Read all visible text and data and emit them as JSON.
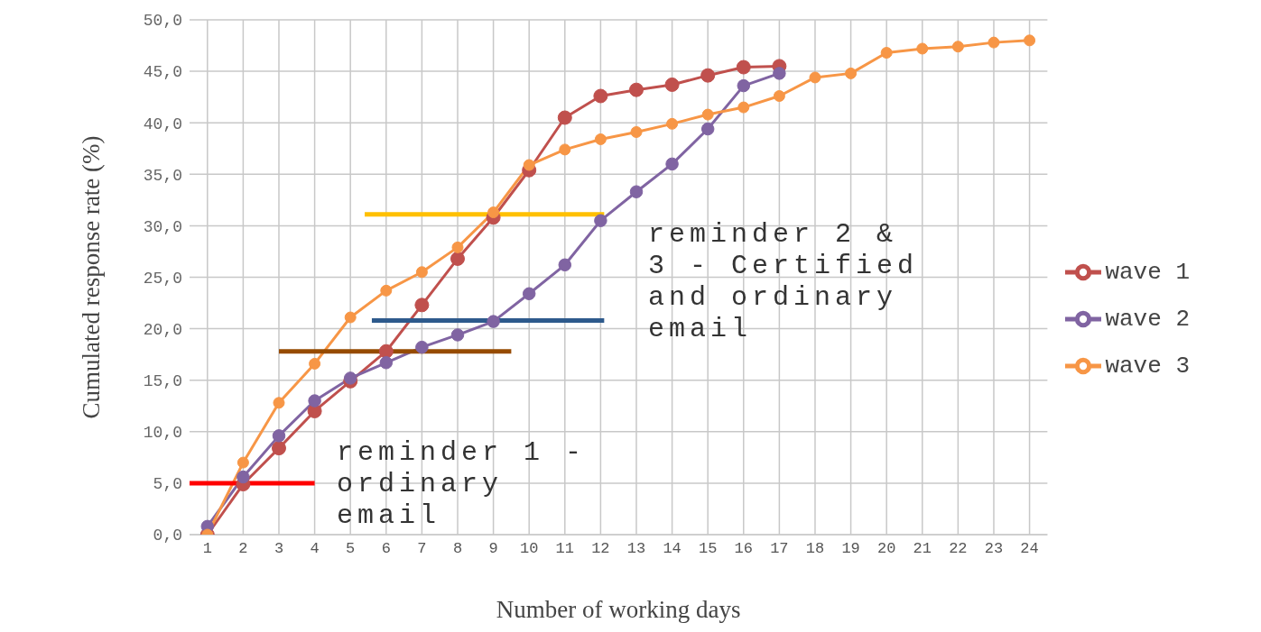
{
  "chart_data": {
    "type": "line",
    "xlabel": "Number of working days",
    "ylabel": "Cumulated response rate (%)",
    "xlim": [
      0.5,
      24.5
    ],
    "xticks": [
      1,
      2,
      3,
      4,
      5,
      6,
      7,
      8,
      9,
      10,
      11,
      12,
      13,
      14,
      15,
      16,
      17,
      18,
      19,
      20,
      21,
      22,
      23,
      24
    ],
    "ylim": [
      0,
      50
    ],
    "yticks": [
      {
        "value": 0,
        "label": "0,0"
      },
      {
        "value": 5,
        "label": "5,0"
      },
      {
        "value": 10,
        "label": "10,0"
      },
      {
        "value": 15,
        "label": "15,0"
      },
      {
        "value": 20,
        "label": "20,0"
      },
      {
        "value": 25,
        "label": "25,0"
      },
      {
        "value": 30,
        "label": "30,0"
      },
      {
        "value": 35,
        "label": "35,0"
      },
      {
        "value": 40,
        "label": "40,0"
      },
      {
        "value": 45,
        "label": "45,0"
      },
      {
        "value": 50,
        "label": "50,0"
      }
    ],
    "grid": true,
    "legend": "right",
    "marker": "circle",
    "series": [
      {
        "name": "wave 1",
        "color": "#c0504d",
        "x": [
          1,
          2,
          3,
          4,
          5,
          6,
          7,
          8,
          9,
          10,
          11,
          12,
          13,
          14,
          15,
          16,
          17
        ],
        "values": [
          0,
          4.9,
          8.4,
          12.0,
          14.9,
          17.8,
          22.3,
          26.8,
          30.8,
          35.4,
          40.5,
          42.6,
          43.2,
          43.7,
          44.6,
          45.4,
          45.5
        ]
      },
      {
        "name": "wave 2",
        "color": "#8064a2",
        "x": [
          1,
          2,
          3,
          4,
          5,
          6,
          7,
          8,
          9,
          10,
          11,
          12,
          13,
          14,
          15,
          16,
          17
        ],
        "values": [
          0.8,
          5.6,
          9.6,
          13.0,
          15.2,
          16.7,
          18.2,
          19.4,
          20.7,
          23.4,
          26.2,
          30.5,
          33.3,
          36.0,
          39.4,
          43.6,
          44.8
        ]
      },
      {
        "name": "wave 3",
        "color": "#f79646",
        "x": [
          1,
          2,
          3,
          4,
          5,
          6,
          7,
          8,
          9,
          10,
          11,
          12,
          13,
          14,
          15,
          16,
          17,
          18,
          19,
          20,
          21,
          22,
          23,
          24
        ],
        "values": [
          0,
          7.0,
          12.8,
          16.6,
          21.1,
          23.7,
          25.5,
          27.9,
          31.3,
          35.9,
          37.4,
          38.4,
          39.1,
          39.9,
          40.8,
          41.5,
          42.6,
          44.4,
          44.8,
          46.8,
          47.2,
          47.4,
          47.8,
          48.0
        ]
      },
      {
        "color": "#ff0000",
        "marker": "none",
        "x": [
          0.5,
          4.0
        ],
        "values": [
          5.0,
          5.0
        ]
      },
      {
        "color": "#964b00",
        "marker": "none",
        "x": [
          3.0,
          9.5
        ],
        "values": [
          17.8,
          17.8
        ]
      },
      {
        "color": "#2e5a8c",
        "marker": "none",
        "x": [
          5.6,
          12.1
        ],
        "values": [
          20.8,
          20.8
        ]
      },
      {
        "color": "#ffc000",
        "marker": "none",
        "x": [
          5.4,
          12.1
        ],
        "values": [
          31.1,
          31.1
        ]
      }
    ],
    "annotations": [
      "reminder 1 - ordinary email",
      "reminder 2 & 3 - Certified and ordinary email"
    ]
  }
}
